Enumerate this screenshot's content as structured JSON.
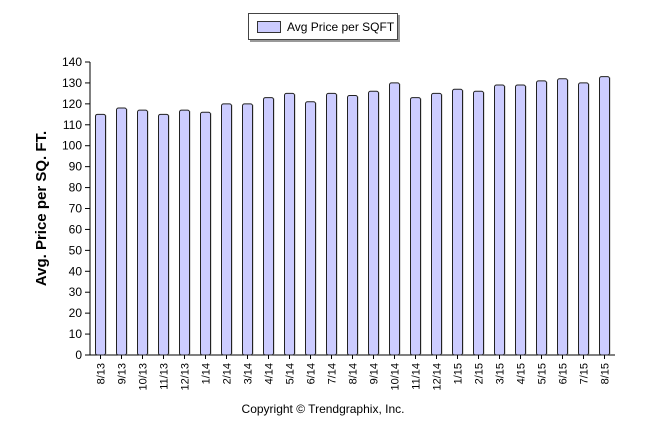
{
  "chart_data": {
    "type": "bar",
    "title": "",
    "xlabel": "",
    "ylabel": "Avg. Price per SQ. FT.",
    "ylim": [
      0,
      140
    ],
    "ytick_step": 10,
    "legend": "top-center",
    "categories": [
      "8/13",
      "9/13",
      "10/13",
      "11/13",
      "12/13",
      "1/14",
      "2/14",
      "3/14",
      "4/14",
      "5/14",
      "6/14",
      "7/14",
      "8/14",
      "9/14",
      "10/14",
      "11/14",
      "12/14",
      "1/15",
      "2/15",
      "3/15",
      "4/15",
      "5/15",
      "6/15",
      "7/15",
      "8/15"
    ],
    "series": [
      {
        "name": "Avg Price per SQFT",
        "color": "#ccccff",
        "values": [
          115,
          118,
          117,
          115,
          117,
          116,
          120,
          120,
          123,
          125,
          121,
          125,
          124,
          126,
          130,
          123,
          125,
          127,
          126,
          129,
          129,
          131,
          132,
          130,
          133
        ]
      }
    ]
  },
  "footer": {
    "copyright": "Copyright © Trendgraphix, Inc."
  }
}
